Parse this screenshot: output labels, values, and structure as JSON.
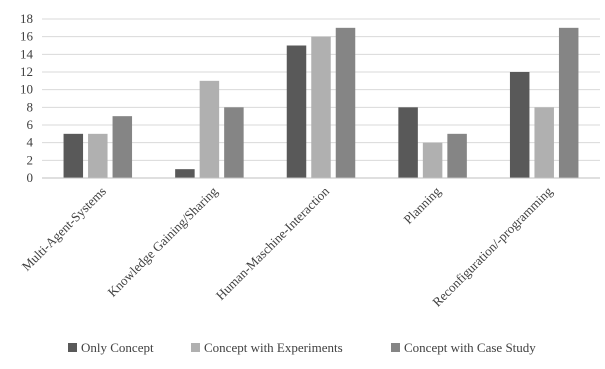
{
  "chart_data": {
    "type": "bar",
    "title": "",
    "xlabel": "",
    "ylabel": "",
    "ylim": [
      0,
      18
    ],
    "yticks": [
      0,
      2,
      4,
      6,
      8,
      10,
      12,
      14,
      16,
      18
    ],
    "grid": true,
    "legend_position": "bottom",
    "categories": [
      "Multi-Agent-Systems",
      "Knowledge Gaining/Sharing",
      "Human-Maschine-Interaction",
      "Planning",
      "Reconfiguration/-programming"
    ],
    "series": [
      {
        "name": "Only Concept",
        "color": "#595959",
        "values": [
          5,
          1,
          15,
          8,
          12
        ]
      },
      {
        "name": "Concept with Experiments",
        "color": "#b0b0b0",
        "values": [
          5,
          11,
          16,
          4,
          8
        ]
      },
      {
        "name": "Concept with Case Study",
        "color": "#858585",
        "values": [
          7,
          8,
          17,
          5,
          17
        ]
      }
    ]
  }
}
